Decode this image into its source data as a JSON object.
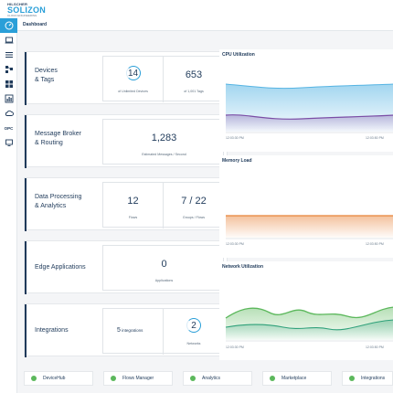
{
  "brand": {
    "line1": "HILSCHER",
    "line2": "SOLIZON",
    "line3": "CLOUD ENGINEERING"
  },
  "breadcrumb": "Dashboard",
  "sidebar": {
    "items": [
      {
        "icon": "dashboard-icon",
        "active": true
      },
      {
        "icon": "laptop-icon"
      },
      {
        "icon": "list-icon"
      },
      {
        "icon": "flows-icon"
      },
      {
        "icon": "grid-icon"
      },
      {
        "icon": "chart-icon"
      },
      {
        "icon": "cloud-icon"
      },
      {
        "icon": "opc-icon",
        "label": "OPC"
      },
      {
        "icon": "monitor-icon"
      }
    ]
  },
  "rows": {
    "devices": {
      "title_l1": "Devices",
      "title_l2": "& Tags",
      "left_value": "14",
      "left_caption": "of Unlimited Devices",
      "right_value": "653",
      "right_caption": "of 1,001 Tags"
    },
    "broker": {
      "title_l1": "Message Broker",
      "title_l2": "& Routing",
      "value": "1,283",
      "caption": "Estimated Messages / Second"
    },
    "processing": {
      "title_l1": "Data Processing",
      "title_l2": "& Analytics",
      "left_value": "12",
      "left_caption": "Flows",
      "right_value": "7 / 22",
      "right_caption": "Groups / Flows"
    },
    "edge": {
      "title": "Edge Applications",
      "value": "0",
      "caption": "Applications"
    },
    "integrations": {
      "title": "Integrations",
      "left_value": "5",
      "left_label": "integrations",
      "right_value": "2",
      "right_caption": "Networks"
    }
  },
  "charts": {
    "cpu": {
      "title": "CPU Utilization",
      "ticks": [
        "12:03:30 PM",
        "12:03:50 PM"
      ],
      "colors": [
        "#56b4e3",
        "#7b4ea6"
      ]
    },
    "memory": {
      "title": "Memory Load",
      "ticks": [
        "12:03:30 PM",
        "12:03:50 PM"
      ],
      "colors": [
        "#e8843a"
      ]
    },
    "network": {
      "title": "Network Utilization",
      "ticks": [
        "12:03:30 PM",
        "12:03:50 PM"
      ],
      "colors": [
        "#5cb85c",
        "#2fa17a"
      ]
    }
  },
  "apps": [
    {
      "label": "DeviceHub"
    },
    {
      "label": "Flows Manager"
    },
    {
      "label": "Analytics"
    },
    {
      "label": "Marketplace"
    },
    {
      "label": "Integrations"
    }
  ]
}
